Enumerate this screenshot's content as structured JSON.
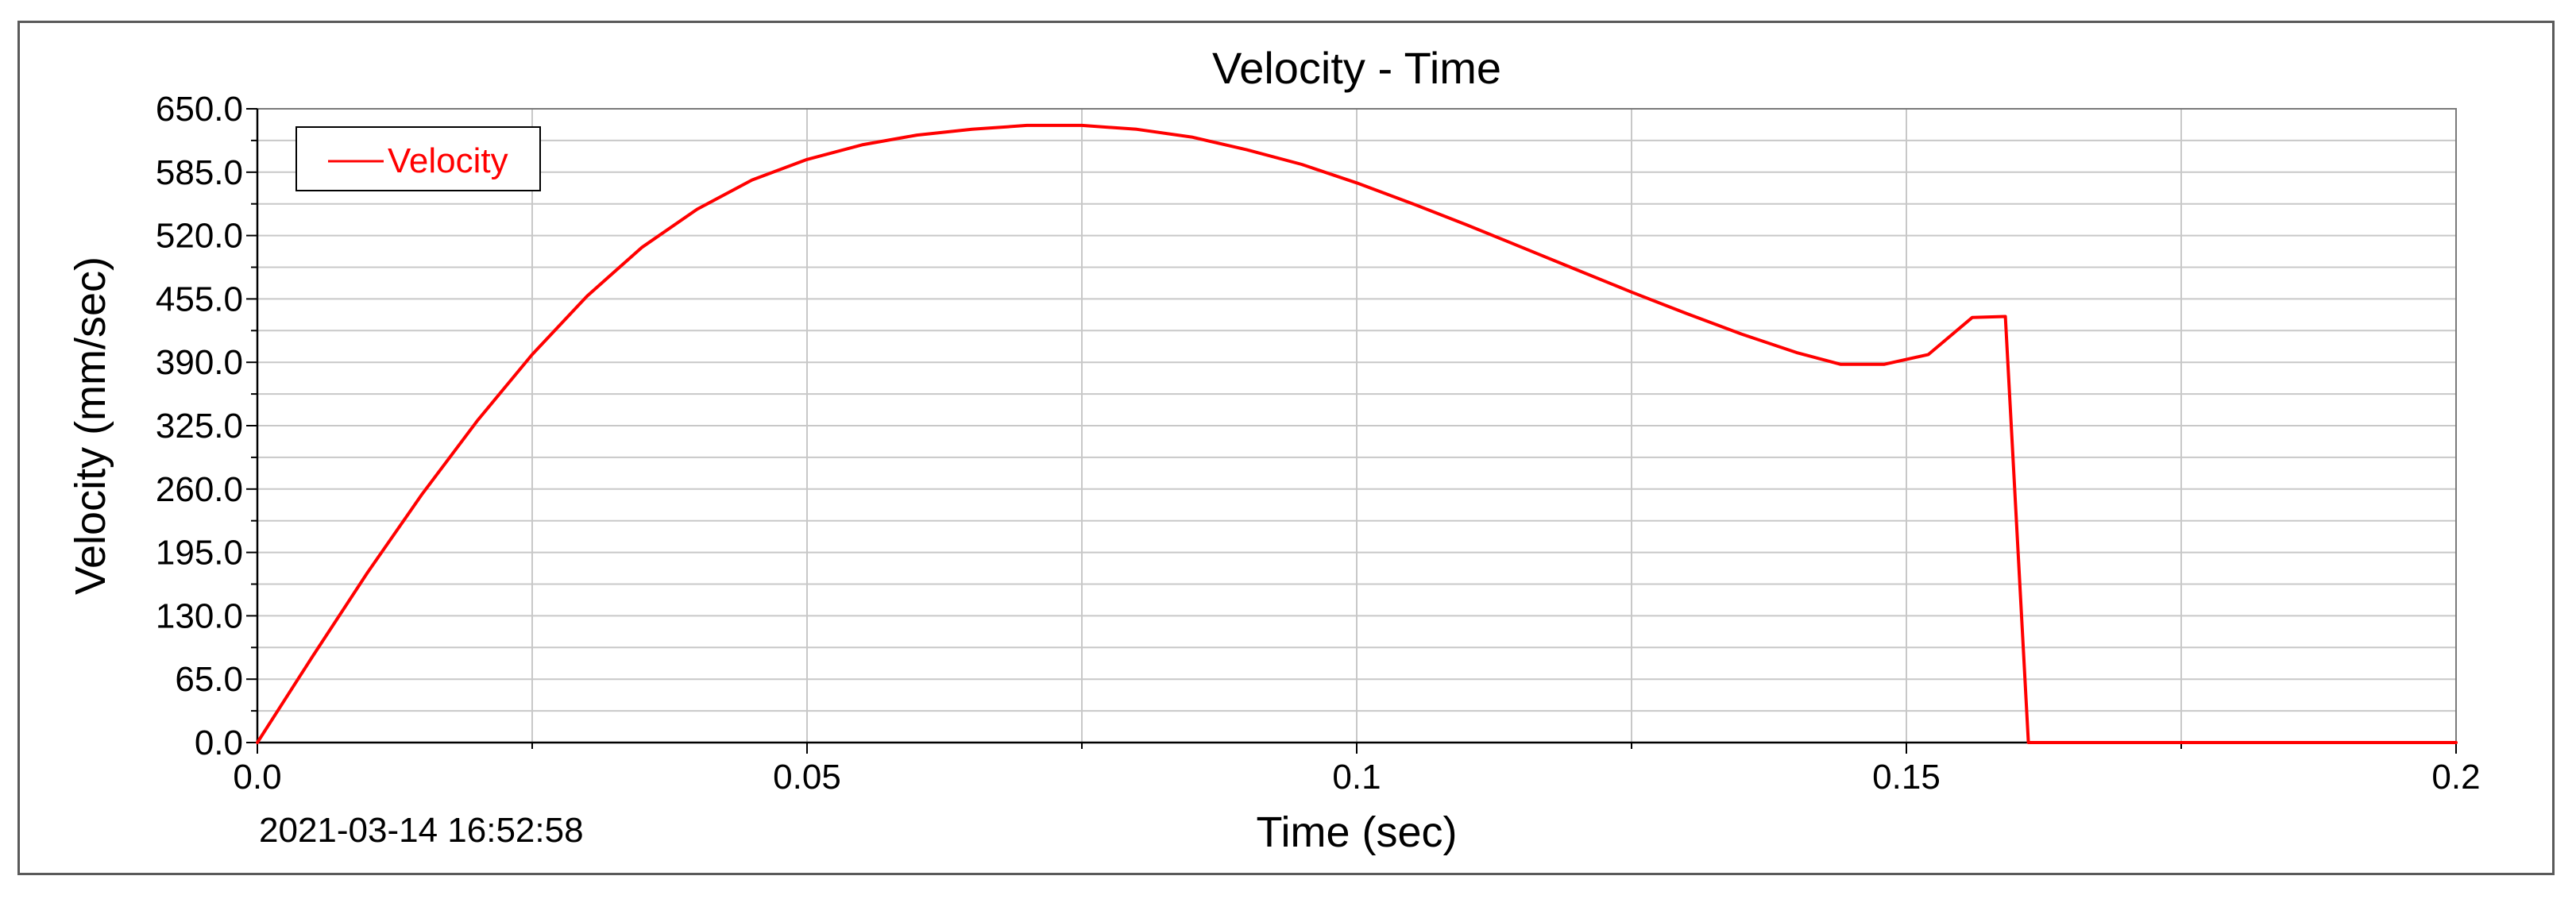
{
  "chart_data": {
    "type": "line",
    "title": "Velocity - Time",
    "xlabel": "Time (sec)",
    "ylabel": "Velocity (mm/sec)",
    "xlim": [
      0.0,
      0.2
    ],
    "ylim": [
      0.0,
      650.0
    ],
    "x_ticks": [
      0.0,
      0.05,
      0.1,
      0.15,
      0.2
    ],
    "x_tick_labels": [
      "0.0",
      "0.05",
      "0.1",
      "0.15",
      "0.2"
    ],
    "x_minor_step": 0.025,
    "y_ticks": [
      0.0,
      65.0,
      130.0,
      195.0,
      260.0,
      325.0,
      390.0,
      455.0,
      520.0,
      585.0,
      650.0
    ],
    "y_tick_labels": [
      "0.0",
      "65.0",
      "130.0",
      "195.0",
      "260.0",
      "325.0",
      "390.0",
      "455.0",
      "520.0",
      "585.0",
      "650.0"
    ],
    "y_minor_step": 32.5,
    "grid": true,
    "legend_position": "top-left",
    "series": [
      {
        "name": "Velocity",
        "color": "#ff0000",
        "x": [
          0.0,
          0.005,
          0.01,
          0.015,
          0.02,
          0.025,
          0.03,
          0.035,
          0.04,
          0.045,
          0.05,
          0.055,
          0.06,
          0.065,
          0.07,
          0.075,
          0.08,
          0.085,
          0.09,
          0.095,
          0.1,
          0.105,
          0.11,
          0.115,
          0.12,
          0.125,
          0.13,
          0.135,
          0.14,
          0.144,
          0.148,
          0.152,
          0.156,
          0.159,
          0.1611,
          0.165,
          0.17,
          0.175,
          0.18,
          0.185,
          0.19,
          0.195,
          0.2
        ],
        "values": [
          0.0,
          88.0,
          174.0,
          255.0,
          330.0,
          398.0,
          458.0,
          508.0,
          547.0,
          577.0,
          598.0,
          613.0,
          623.0,
          629.0,
          633.0,
          633.0,
          629.0,
          621.0,
          608.0,
          593.0,
          574.0,
          553.0,
          531.0,
          508.0,
          485.0,
          462.0,
          440.0,
          419.0,
          400.0,
          388.0,
          388.0,
          398.0,
          436.0,
          437.0,
          0.0,
          0.0,
          0.0,
          0.0,
          0.0,
          0.0,
          0.0,
          0.0,
          0.0
        ]
      }
    ]
  },
  "timestamp": "2021-03-14 16:52:58"
}
